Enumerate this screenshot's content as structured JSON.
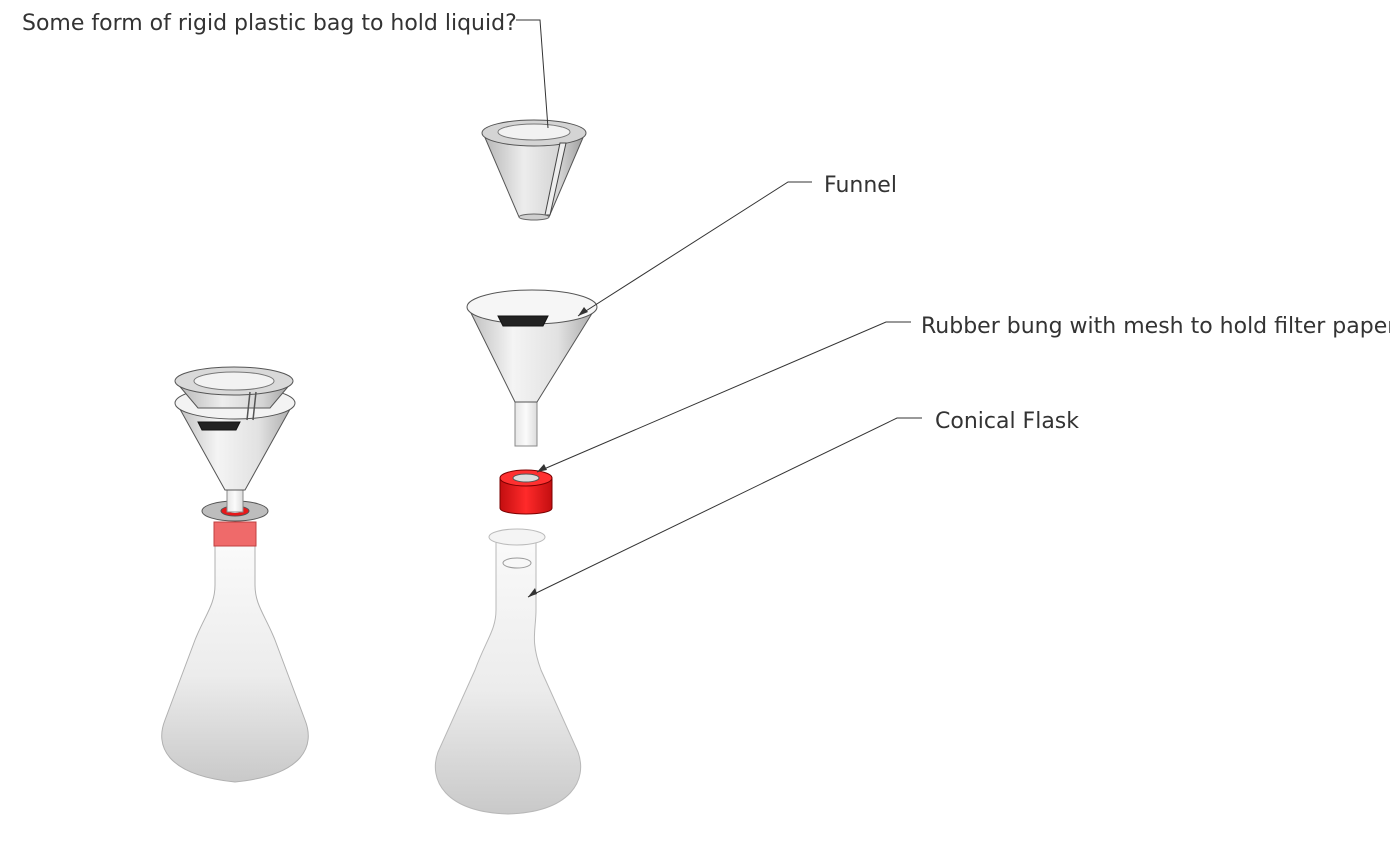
{
  "labels": {
    "bag": "Some form of rigid plastic bag to hold liquid?",
    "funnel": "Funnel",
    "bung": "Rubber bung with mesh to hold filter paper",
    "flask": "Conical Flask"
  },
  "colors": {
    "bung_red": "#e8181a",
    "glass_light": "#f5f5f5",
    "glass_mid": "#d6d6d6",
    "glass_dark": "#9a9a9a",
    "outline": "#555555",
    "leader": "#333333",
    "band_pink": "#ef6a6a",
    "mesh_black": "#222222"
  }
}
